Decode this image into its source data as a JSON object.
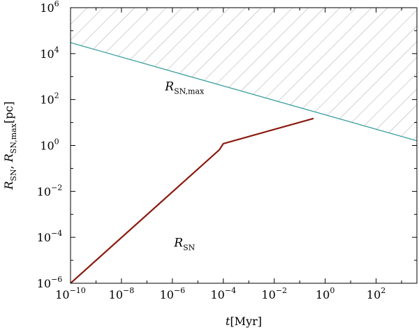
{
  "chart_data": {
    "type": "line",
    "title": "",
    "xlabel": {
      "italic": "t",
      "unit": "[Myr]"
    },
    "ylabel": {
      "r_sn": "R",
      "r_sn_sub": "SN",
      "sep": ", ",
      "r_max": "R",
      "r_max_sub": "SN,max",
      "unit": "[pc]"
    },
    "xscale": "log",
    "yscale": "log",
    "xlim": [
      1e-10,
      4000
    ],
    "ylim": [
      1e-06,
      1000000.0
    ],
    "x_ticks": [
      {
        "value": 1e-10,
        "base": "10",
        "exp": "−10"
      },
      {
        "value": 1e-08,
        "base": "10",
        "exp": "−8"
      },
      {
        "value": 1e-06,
        "base": "10",
        "exp": "−6"
      },
      {
        "value": 0.0001,
        "base": "10",
        "exp": "−4"
      },
      {
        "value": 0.01,
        "base": "10",
        "exp": "−2"
      },
      {
        "value": 1,
        "base": "10",
        "exp": "0"
      },
      {
        "value": 100,
        "base": "10",
        "exp": "2"
      }
    ],
    "y_ticks": [
      {
        "value": 1e-06,
        "base": "10",
        "exp": "−6"
      },
      {
        "value": 0.0001,
        "base": "10",
        "exp": "−4"
      },
      {
        "value": 0.01,
        "base": "10",
        "exp": "−2"
      },
      {
        "value": 1,
        "base": "10",
        "exp": "0"
      },
      {
        "value": 100,
        "base": "10",
        "exp": "2"
      },
      {
        "value": 10000.0,
        "base": "10",
        "exp": "4"
      },
      {
        "value": 1000000.0,
        "base": "10",
        "exp": "6"
      }
    ],
    "grid": false,
    "series": [
      {
        "name": "R_SN,max",
        "label_main": "R",
        "label_sub": "SN,max",
        "color": "#3a9e9e",
        "x": [
          1e-10,
          4000
        ],
        "y": [
          30000.0,
          1.6
        ]
      },
      {
        "name": "R_SN",
        "label_main": "R",
        "label_sub": "SN",
        "color": "#8b1a10",
        "x": [
          1e-10,
          7e-05,
          0.0001,
          0.35
        ],
        "y": [
          1e-06,
          0.65,
          1.2,
          15
        ]
      }
    ],
    "shaded_region": {
      "description": "hatched area above R_SN,max",
      "hatch_color": "#999999"
    },
    "annotations": [
      {
        "series": "R_SN,max",
        "x": 3e-06,
        "y": 250
      },
      {
        "series": "R_SN",
        "x": 3e-06,
        "y": 4e-05
      }
    ]
  }
}
